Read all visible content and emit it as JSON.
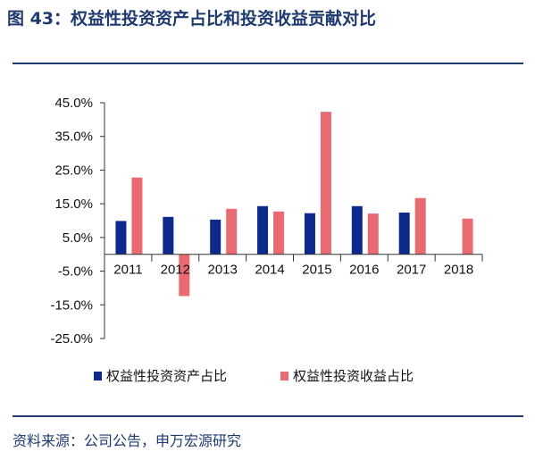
{
  "figure": {
    "title": "图 43：权益性投资资产占比和投资收益贡献对比",
    "source": "资料来源：公司公告，申万宏源研究"
  },
  "colors": {
    "series_1": "#0b2a8c",
    "series_2": "#ea6a72",
    "title": "#1f3a6e",
    "axis": "#333333"
  },
  "chart_data": {
    "type": "bar",
    "categories": [
      "2011",
      "2012",
      "2013",
      "2014",
      "2015",
      "2016",
      "2017",
      "2018"
    ],
    "series": [
      {
        "name": "权益性投资资产占比",
        "values": [
          9.9,
          11.1,
          10.3,
          14.3,
          12.2,
          14.3,
          12.4,
          null
        ]
      },
      {
        "name": "权益性投资收益占比",
        "values": [
          22.8,
          -12.4,
          13.5,
          12.7,
          42.3,
          12.1,
          16.7,
          10.6
        ]
      }
    ],
    "yticks": [
      45,
      35,
      25,
      15,
      5,
      -5,
      -15,
      -25
    ],
    "ytick_labels": [
      "45.0%",
      "35.0%",
      "25.0%",
      "15.0%",
      "5.0%",
      "-5.0%",
      "-15.0%",
      "-25.0%"
    ],
    "ylim": [
      -25,
      45
    ],
    "grid": false,
    "legend_position": "bottom"
  }
}
